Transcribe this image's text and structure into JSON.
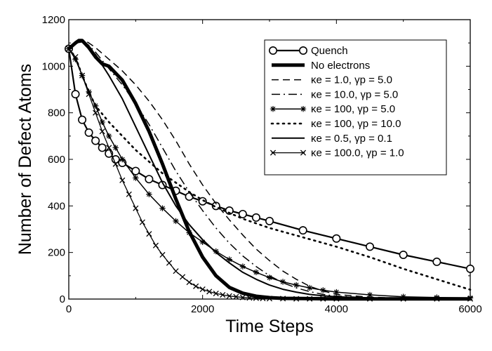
{
  "chart_data": {
    "type": "line",
    "xlabel": "Time Steps",
    "ylabel": "Number of Defect Atoms",
    "xlim": [
      0,
      6000
    ],
    "ylim": [
      0,
      1200
    ],
    "x_ticks": [
      0,
      2000,
      4000,
      6000
    ],
    "y_ticks": [
      0,
      200,
      400,
      600,
      800,
      1000,
      1200
    ],
    "grid": false,
    "legend_position": "top-right",
    "series": [
      {
        "name": "Quench",
        "style": "solid",
        "width": 2.2,
        "marker": "circle",
        "x": [
          0,
          100,
          200,
          300,
          400,
          500,
          600,
          700,
          800,
          1000,
          1200,
          1400,
          1600,
          1800,
          2000,
          2200,
          2400,
          2600,
          2800,
          3000,
          3500,
          4000,
          4500,
          5000,
          5500,
          6000
        ],
        "y": [
          1075,
          880,
          770,
          715,
          680,
          650,
          625,
          600,
          585,
          550,
          515,
          490,
          465,
          440,
          420,
          400,
          380,
          365,
          350,
          335,
          295,
          260,
          225,
          190,
          160,
          130
        ]
      },
      {
        "name": "No electrons",
        "style": "solid",
        "width": 5,
        "marker": "none",
        "x": [
          0,
          100,
          150,
          200,
          300,
          400,
          500,
          600,
          800,
          1000,
          1200,
          1400,
          1600,
          1800,
          2000,
          2200,
          2400,
          2600,
          2800,
          3000,
          3200,
          3500,
          4000,
          5000,
          6000
        ],
        "y": [
          1075,
          1100,
          1110,
          1110,
          1080,
          1040,
          1010,
          1000,
          940,
          840,
          720,
          580,
          430,
          290,
          180,
          100,
          50,
          25,
          12,
          6,
          3,
          2,
          1,
          1,
          1
        ]
      },
      {
        "name": "κe = 1.0,   γp = 5.0",
        "style": "dashed",
        "width": 1.5,
        "marker": "none",
        "x": [
          0,
          100,
          200,
          300,
          400,
          600,
          800,
          1000,
          1200,
          1400,
          1600,
          1800,
          2000,
          2200,
          2400,
          2600,
          2800,
          3000,
          3200,
          3400,
          3600,
          3800,
          4000,
          4500,
          5000,
          5500,
          6000
        ],
        "y": [
          1075,
          1105,
          1115,
          1100,
          1080,
          1030,
          980,
          920,
          850,
          770,
          680,
          580,
          490,
          410,
          340,
          275,
          215,
          165,
          120,
          85,
          55,
          35,
          20,
          8,
          4,
          2,
          1
        ]
      },
      {
        "name": "κe = 10.0,  γp = 5.0",
        "style": "dashdot",
        "width": 1.5,
        "marker": "none",
        "x": [
          0,
          100,
          200,
          300,
          400,
          600,
          800,
          1000,
          1200,
          1400,
          1600,
          1800,
          2000,
          2200,
          2400,
          2600,
          2800,
          3000,
          3200,
          3400,
          3600,
          3800,
          4000,
          4500,
          5000,
          5500,
          6000
        ],
        "y": [
          1075,
          1105,
          1110,
          1090,
          1060,
          990,
          920,
          840,
          750,
          650,
          550,
          460,
          380,
          305,
          240,
          185,
          140,
          100,
          70,
          48,
          32,
          20,
          13,
          5,
          2,
          1,
          1
        ]
      },
      {
        "name": "κe = 100,   γp = 5.0",
        "style": "solid",
        "width": 1.5,
        "marker": "star",
        "x": [
          0,
          100,
          200,
          300,
          400,
          500,
          600,
          700,
          800,
          1000,
          1200,
          1400,
          1600,
          1800,
          2000,
          2200,
          2400,
          2600,
          2800,
          3000,
          3200,
          3400,
          3600,
          3800,
          4000,
          4500,
          5000,
          5500,
          6000
        ],
        "y": [
          1075,
          1030,
          960,
          890,
          830,
          760,
          700,
          650,
          600,
          520,
          450,
          390,
          335,
          285,
          245,
          205,
          170,
          140,
          115,
          92,
          74,
          60,
          48,
          38,
          30,
          18,
          10,
          7,
          5
        ]
      },
      {
        "name": "κe = 100,   γp = 10.0",
        "style": "dotted",
        "width": 2.6,
        "marker": "none",
        "x": [
          0,
          100,
          200,
          300,
          400,
          600,
          800,
          1000,
          1200,
          1400,
          1600,
          1800,
          2000,
          2200,
          2400,
          2600,
          2800,
          3000,
          3500,
          4000,
          4500,
          5000,
          5500,
          6000
        ],
        "y": [
          1075,
          1040,
          960,
          890,
          830,
          760,
          700,
          640,
          590,
          540,
          500,
          460,
          425,
          395,
          370,
          345,
          325,
          305,
          265,
          225,
          180,
          130,
          85,
          40
        ]
      },
      {
        "name": "κe = 0.5,   γp = 0.1",
        "style": "solid",
        "width": 2,
        "marker": "none",
        "x": [
          0,
          100,
          200,
          300,
          400,
          600,
          800,
          1000,
          1200,
          1400,
          1600,
          1800,
          2000,
          2200,
          2400,
          2600,
          2800,
          3000,
          3200,
          3400,
          3600,
          3800,
          4000,
          4500,
          5000,
          5500,
          6000
        ],
        "y": [
          1075,
          1100,
          1105,
          1080,
          1050,
          960,
          860,
          740,
          620,
          500,
          400,
          320,
          255,
          200,
          155,
          115,
          85,
          60,
          42,
          30,
          20,
          14,
          10,
          5,
          3,
          2,
          1
        ]
      },
      {
        "name": "κe = 100.0, γp = 1.0",
        "style": "solid",
        "width": 1.3,
        "marker": "x",
        "x": [
          0,
          100,
          200,
          300,
          400,
          500,
          600,
          700,
          800,
          900,
          1000,
          1100,
          1200,
          1300,
          1400,
          1500,
          1600,
          1700,
          1800,
          1900,
          2000,
          2100,
          2200,
          2300,
          2400,
          2500,
          2600,
          2700,
          2800,
          2900,
          3000,
          3200,
          3400,
          3600,
          3800,
          4000,
          4500,
          5000,
          5500,
          6000
        ],
        "y": [
          1075,
          1040,
          960,
          880,
          800,
          720,
          650,
          580,
          510,
          450,
          390,
          330,
          280,
          230,
          190,
          155,
          120,
          95,
          72,
          55,
          42,
          32,
          24,
          18,
          13,
          10,
          7,
          5,
          4,
          3,
          2,
          2,
          1,
          1,
          1,
          1,
          1,
          1,
          1,
          1
        ]
      }
    ]
  }
}
